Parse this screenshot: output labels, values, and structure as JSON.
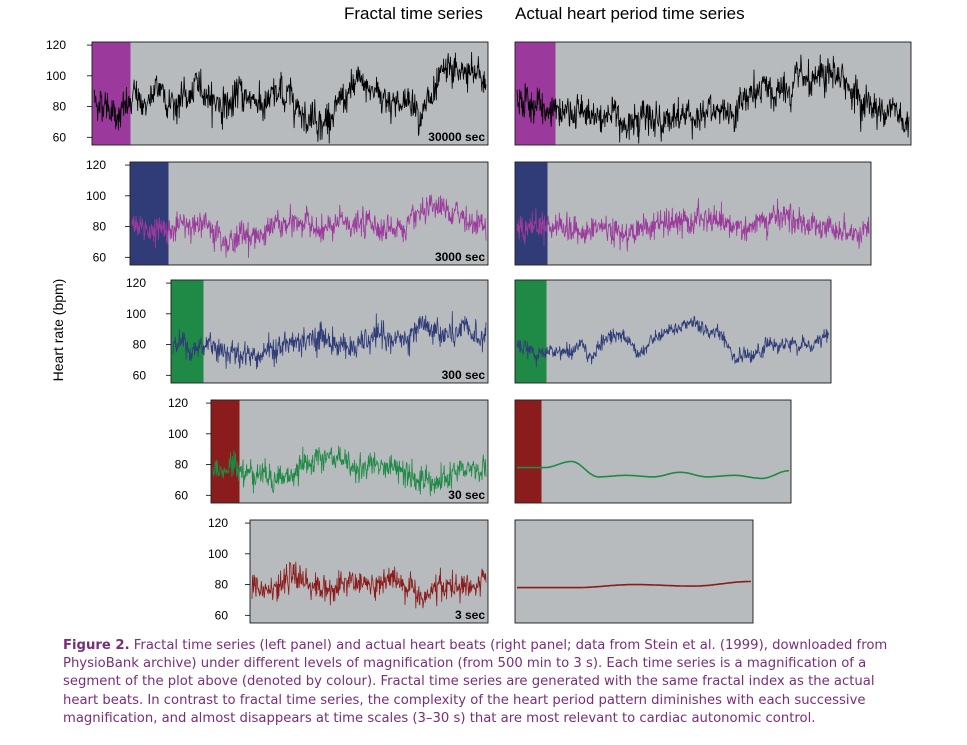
{
  "header": {
    "left_title": "Fractal time series",
    "right_title": "Actual heart period time series"
  },
  "y_axis_label": "Heart rate (bpm)",
  "caption": {
    "label": "Figure 2.",
    "text": "Fractal time series (left panel) and actual heart beats (right panel; data from Stein et al. (1999), downloaded from PhysioBank archive) under different levels of magnification (from 500 min to 3 s). Each time series is a magnification of a segment of the plot above (denoted by colour). Fractal time series are generated with the same fractal index as the actual heart beats. In contrast to fractal time series, the complexity of the heart period pattern diminishes with each successive magnification, and almost disappears at time scales (3–30 s) that are most relevant to cardiac autonomic control."
  },
  "colors": {
    "panel_bg": "#b8bbbe",
    "black": "#000000",
    "purple": "#9b3a9c",
    "navy": "#303c78",
    "green": "#1e8a45",
    "darkred": "#8b1c1c",
    "caption": "#7b2d7a"
  },
  "chart_data": [
    {
      "type": "line",
      "panel": "fractal",
      "scale_label": "30000 sec",
      "yticks": [
        60,
        80,
        100,
        120
      ],
      "ylim": [
        55,
        122
      ],
      "series_color": "black",
      "highlight_color": "purple",
      "baseline": 85,
      "volatility": "high",
      "drift": [
        0,
        0,
        0,
        0,
        0
      ]
    },
    {
      "type": "line",
      "panel": "fractal",
      "scale_label": "3000 sec",
      "yticks": [
        60,
        80,
        100,
        120
      ],
      "ylim": [
        55,
        122
      ],
      "series_color": "purple",
      "highlight_color": "navy",
      "baseline": 80,
      "volatility": "medium",
      "drift": []
    },
    {
      "type": "line",
      "panel": "fractal",
      "scale_label": "300 sec",
      "yticks": [
        60,
        80,
        100,
        120
      ],
      "ylim": [
        55,
        122
      ],
      "series_color": "navy",
      "highlight_color": "green",
      "baseline": 80,
      "volatility": "medium"
    },
    {
      "type": "line",
      "panel": "fractal",
      "scale_label": "30 sec",
      "yticks": [
        60,
        80,
        100,
        120
      ],
      "ylim": [
        55,
        122
      ],
      "series_color": "green",
      "highlight_color": "darkred",
      "baseline": 78,
      "volatility": "medium"
    },
    {
      "type": "line",
      "panel": "fractal",
      "scale_label": "3 sec",
      "yticks": [
        60,
        80,
        100,
        120
      ],
      "ylim": [
        55,
        122
      ],
      "series_color": "darkred",
      "highlight_color": null,
      "baseline": 78,
      "volatility": "medium"
    },
    {
      "type": "line",
      "panel": "actual",
      "yticks": [
        60,
        80,
        100,
        120
      ],
      "ylim": [
        55,
        122
      ],
      "series_color": "black",
      "highlight_color": "purple",
      "baseline": 80,
      "volatility": "high"
    },
    {
      "type": "line",
      "panel": "actual",
      "yticks": [
        60,
        80,
        100,
        120
      ],
      "ylim": [
        55,
        122
      ],
      "series_color": "purple",
      "highlight_color": "navy",
      "baseline": 82,
      "volatility": "medium"
    },
    {
      "type": "line",
      "panel": "actual",
      "yticks": [
        60,
        80,
        100,
        120
      ],
      "ylim": [
        55,
        122
      ],
      "series_color": "navy",
      "highlight_color": "green",
      "baseline": 80,
      "volatility": "low"
    },
    {
      "type": "line",
      "panel": "actual",
      "yticks": [
        60,
        80,
        100,
        120
      ],
      "ylim": [
        55,
        122
      ],
      "series_color": "green",
      "highlight_color": "darkred",
      "x": [
        0,
        0.1,
        0.2,
        0.3,
        0.4,
        0.5,
        0.6,
        0.7,
        0.8,
        0.9,
        1
      ],
      "y": [
        78,
        78,
        82,
        72,
        73,
        72,
        75,
        72,
        73,
        71,
        76
      ]
    },
    {
      "type": "line",
      "panel": "actual",
      "yticks": [
        60,
        80,
        100,
        120
      ],
      "ylim": [
        55,
        122
      ],
      "series_color": "darkred",
      "highlight_color": null,
      "x": [
        0,
        0.25,
        0.5,
        0.75,
        1
      ],
      "y": [
        78,
        78,
        80,
        79,
        82
      ]
    }
  ]
}
